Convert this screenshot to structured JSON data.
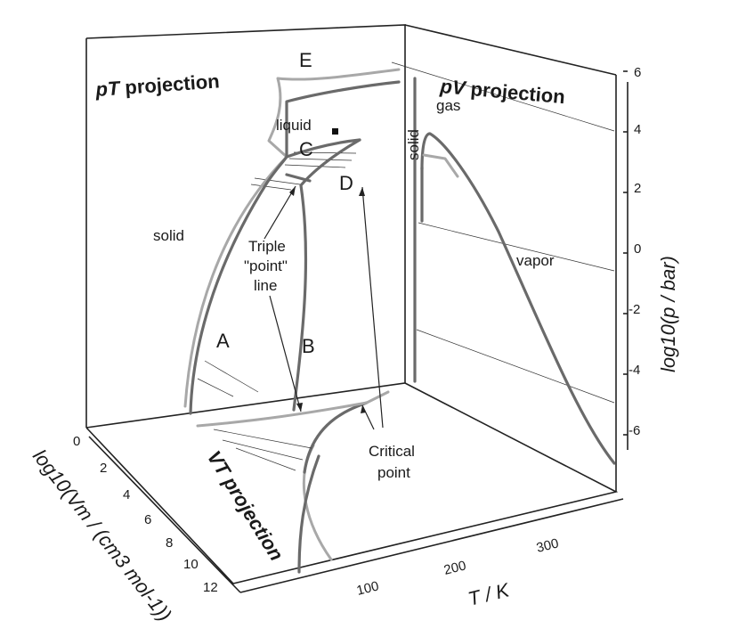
{
  "figure": {
    "pt_title_italic": "pT",
    "pt_title_rest": " projection",
    "pv_title_italic": "pV",
    "pv_title_rest": " projection",
    "vt_title": "VT projection"
  },
  "regions": {
    "solid": "solid",
    "liquid": "liquid",
    "gas": "gas",
    "solid_pv": "solid",
    "vapor": "vapor"
  },
  "curve_labels": {
    "a": "A",
    "b": "B",
    "c": "C",
    "d": "D",
    "e": "E"
  },
  "annotations": {
    "triple_1": "Triple",
    "triple_2": "\"point\"",
    "triple_3": "line",
    "critical_1": "Critical",
    "critical_2": "point"
  },
  "axes": {
    "p_axis_label": "log10(p / bar)",
    "p_ticks": [
      "6",
      "4",
      "2",
      "0",
      "-2",
      "-4",
      "-6"
    ],
    "v_axis_label": "log10(Vm / (cm3 mol-1))",
    "v_ticks": [
      "0",
      "2",
      "4",
      "6",
      "8",
      "10",
      "12"
    ],
    "t_axis_label": "T / K",
    "t_ticks": [
      "100",
      "200",
      "300"
    ]
  },
  "colors": {
    "dark_curve": "#6a6a6a",
    "light_curve": "#a8a8a8",
    "axis": "#222222"
  }
}
